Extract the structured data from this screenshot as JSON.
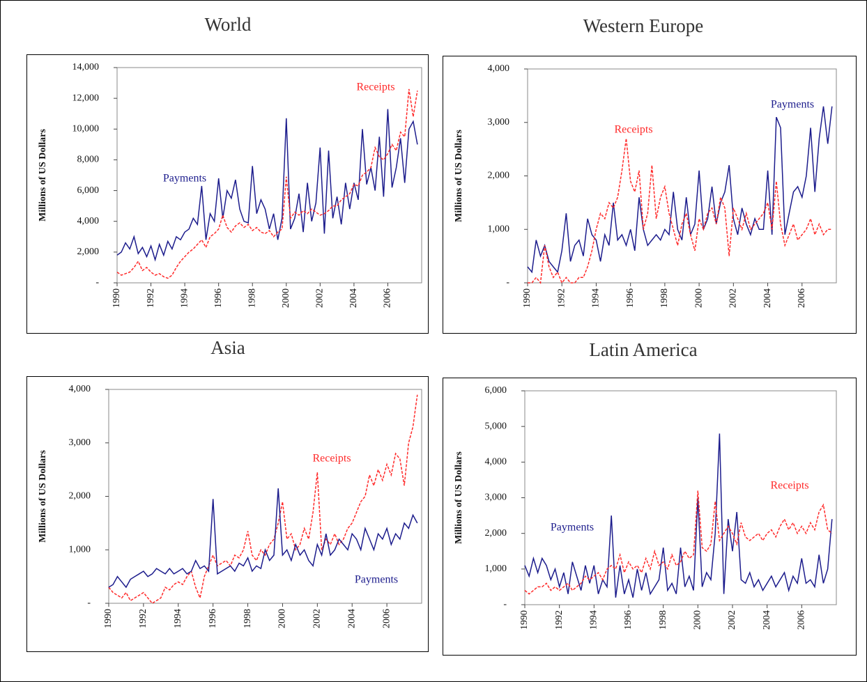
{
  "chart_data": [
    {
      "type": "line",
      "title": "World",
      "y_label": "Millions of US Dollars",
      "xlim": [
        1990,
        2008
      ],
      "xticks": [
        1990,
        1992,
        1994,
        1996,
        1998,
        2000,
        2002,
        2004,
        2006
      ],
      "ylim": [
        0,
        14000
      ],
      "yticks": [
        {
          "value": 0,
          "label": "-"
        },
        {
          "value": 2000,
          "label": "2,000"
        },
        {
          "value": 4000,
          "label": "4,000"
        },
        {
          "value": 6000,
          "label": "6,000"
        },
        {
          "value": 8000,
          "label": "8,000"
        },
        {
          "value": 10000,
          "label": "10,000"
        },
        {
          "value": 12000,
          "label": "12,000"
        },
        {
          "value": 14000,
          "label": "14,000"
        }
      ],
      "x": [
        1990,
        1990.25,
        1990.5,
        1990.75,
        1991,
        1991.25,
        1991.5,
        1991.75,
        1992,
        1992.25,
        1992.5,
        1992.75,
        1993,
        1993.25,
        1993.5,
        1993.75,
        1994,
        1994.25,
        1994.5,
        1994.75,
        1995,
        1995.25,
        1995.5,
        1995.75,
        1996,
        1996.25,
        1996.5,
        1996.75,
        1997,
        1997.25,
        1997.5,
        1997.75,
        1998,
        1998.25,
        1998.5,
        1998.75,
        1999,
        1999.25,
        1999.5,
        1999.75,
        2000,
        2000.25,
        2000.5,
        2000.75,
        2001,
        2001.25,
        2001.5,
        2001.75,
        2002,
        2002.25,
        2002.5,
        2002.75,
        2003,
        2003.25,
        2003.5,
        2003.75,
        2004,
        2004.25,
        2004.5,
        2004.75,
        2005,
        2005.25,
        2005.5,
        2005.75,
        2006,
        2006.25,
        2006.5,
        2006.75,
        2007,
        2007.25,
        2007.5,
        2007.75
      ],
      "series": [
        {
          "name": "Payments",
          "color": "#1c1c8c",
          "dashed": false,
          "values": [
            1800,
            2000,
            2600,
            2200,
            3000,
            1900,
            2300,
            1700,
            2400,
            1500,
            2500,
            1800,
            2700,
            2200,
            3000,
            2800,
            3300,
            3500,
            4200,
            3800,
            6300,
            2800,
            4500,
            4000,
            6800,
            4200,
            6000,
            5500,
            6700,
            4800,
            4000,
            3900,
            7600,
            4500,
            5400,
            4800,
            3500,
            4500,
            2800,
            4200,
            10700,
            3500,
            4200,
            5800,
            3300,
            6500,
            4000,
            5200,
            8800,
            3200,
            8600,
            4200,
            5600,
            3800,
            6500,
            4800,
            6500,
            5400,
            10000,
            6400,
            7500,
            6000,
            9500,
            5600,
            11300,
            6200,
            7500,
            9400,
            6500,
            10000,
            10500,
            9000
          ]
        },
        {
          "name": "Receipts",
          "color": "#ff2a2a",
          "dashed": true,
          "values": [
            700,
            500,
            600,
            700,
            1000,
            1400,
            800,
            1000,
            700,
            500,
            600,
            400,
            300,
            500,
            1000,
            1400,
            1700,
            2000,
            2200,
            2500,
            2800,
            2300,
            3000,
            3200,
            3500,
            4400,
            3600,
            3300,
            3700,
            3900,
            3600,
            3800,
            3400,
            3600,
            3300,
            3200,
            3400,
            3000,
            3300,
            3500,
            6900,
            4200,
            4600,
            4400,
            4700,
            4500,
            4800,
            4600,
            4400,
            4500,
            4700,
            5000,
            5000,
            5400,
            5600,
            5800,
            6400,
            6300,
            7000,
            7200,
            7500,
            8800,
            8200,
            8000,
            8400,
            9000,
            8600,
            9800,
            9500,
            12600,
            10800,
            12500
          ]
        }
      ]
    },
    {
      "type": "line",
      "title": "Western Europe",
      "y_label": "Millions of US Dollars",
      "xlim": [
        1990,
        2008
      ],
      "xticks": [
        1990,
        1992,
        1994,
        1996,
        1998,
        2000,
        2002,
        2004,
        2006
      ],
      "ylim": [
        0,
        4000
      ],
      "yticks": [
        {
          "value": 0,
          "label": "-"
        },
        {
          "value": 1000,
          "label": "1,000"
        },
        {
          "value": 2000,
          "label": "2,000"
        },
        {
          "value": 3000,
          "label": "3,000"
        },
        {
          "value": 4000,
          "label": "4,000"
        }
      ],
      "x": [
        1990,
        1990.25,
        1990.5,
        1990.75,
        1991,
        1991.25,
        1991.5,
        1991.75,
        1992,
        1992.25,
        1992.5,
        1992.75,
        1993,
        1993.25,
        1993.5,
        1993.75,
        1994,
        1994.25,
        1994.5,
        1994.75,
        1995,
        1995.25,
        1995.5,
        1995.75,
        1996,
        1996.25,
        1996.5,
        1996.75,
        1997,
        1997.25,
        1997.5,
        1997.75,
        1998,
        1998.25,
        1998.5,
        1998.75,
        1999,
        1999.25,
        1999.5,
        1999.75,
        2000,
        2000.25,
        2000.5,
        2000.75,
        2001,
        2001.25,
        2001.5,
        2001.75,
        2002,
        2002.25,
        2002.5,
        2002.75,
        2003,
        2003.25,
        2003.5,
        2003.75,
        2004,
        2004.25,
        2004.5,
        2004.75,
        2005,
        2005.25,
        2005.5,
        2005.75,
        2006,
        2006.25,
        2006.5,
        2006.75,
        2007,
        2007.25,
        2007.5,
        2007.75
      ],
      "series": [
        {
          "name": "Payments",
          "color": "#1c1c8c",
          "dashed": false,
          "values": [
            300,
            200,
            800,
            500,
            700,
            400,
            300,
            200,
            600,
            1300,
            400,
            700,
            800,
            500,
            1200,
            900,
            800,
            400,
            900,
            700,
            1500,
            800,
            900,
            700,
            1000,
            600,
            1600,
            1000,
            700,
            800,
            900,
            800,
            1000,
            900,
            1700,
            1000,
            800,
            1600,
            900,
            1100,
            2100,
            1000,
            1200,
            1800,
            1100,
            1500,
            1700,
            2200,
            1200,
            900,
            1400,
            1100,
            900,
            1200,
            1000,
            1000,
            2100,
            900,
            3100,
            2900,
            900,
            1300,
            1700,
            1800,
            1600,
            2000,
            2900,
            1700,
            2700,
            3300,
            2600,
            3300
          ]
        },
        {
          "name": "Receipts",
          "color": "#ff2a2a",
          "dashed": true,
          "values": [
            0,
            0,
            100,
            0,
            700,
            300,
            100,
            200,
            0,
            100,
            0,
            0,
            100,
            100,
            300,
            600,
            1000,
            1300,
            1200,
            1500,
            1400,
            1600,
            2100,
            2700,
            1900,
            1700,
            2100,
            1000,
            1300,
            2200,
            1200,
            1600,
            1800,
            1300,
            1000,
            700,
            1100,
            1300,
            900,
            600,
            1200,
            1000,
            1300,
            1400,
            1100,
            1600,
            1400,
            500,
            1400,
            1200,
            1000,
            1300,
            1000,
            1100,
            1200,
            1300,
            1500,
            1000,
            1900,
            1100,
            700,
            900,
            1100,
            800,
            900,
            1000,
            1200,
            900,
            1100,
            900,
            1000,
            1000
          ]
        }
      ]
    },
    {
      "type": "line",
      "title": "Asia",
      "y_label": "Millions of US Dollars",
      "xlim": [
        1990,
        2008
      ],
      "xticks": [
        1990,
        1992,
        1994,
        1996,
        1998,
        2000,
        2002,
        2004,
        2006
      ],
      "ylim": [
        0,
        4000
      ],
      "yticks": [
        {
          "value": 0,
          "label": "-"
        },
        {
          "value": 1000,
          "label": "1,000"
        },
        {
          "value": 2000,
          "label": "2,000"
        },
        {
          "value": 3000,
          "label": "3,000"
        },
        {
          "value": 4000,
          "label": "4,000"
        }
      ],
      "x": [
        1990,
        1990.25,
        1990.5,
        1990.75,
        1991,
        1991.25,
        1991.5,
        1991.75,
        1992,
        1992.25,
        1992.5,
        1992.75,
        1993,
        1993.25,
        1993.5,
        1993.75,
        1994,
        1994.25,
        1994.5,
        1994.75,
        1995,
        1995.25,
        1995.5,
        1995.75,
        1996,
        1996.25,
        1996.5,
        1996.75,
        1997,
        1997.25,
        1997.5,
        1997.75,
        1998,
        1998.25,
        1998.5,
        1998.75,
        1999,
        1999.25,
        1999.5,
        1999.75,
        2000,
        2000.25,
        2000.5,
        2000.75,
        2001,
        2001.25,
        2001.5,
        2001.75,
        2002,
        2002.25,
        2002.5,
        2002.75,
        2003,
        2003.25,
        2003.5,
        2003.75,
        2004,
        2004.25,
        2004.5,
        2004.75,
        2005,
        2005.25,
        2005.5,
        2005.75,
        2006,
        2006.25,
        2006.5,
        2006.75,
        2007,
        2007.25,
        2007.5,
        2007.75
      ],
      "series": [
        {
          "name": "Receipts",
          "color": "#ff2a2a",
          "dashed": true,
          "values": [
            300,
            200,
            150,
            100,
            200,
            50,
            100,
            150,
            200,
            100,
            0,
            50,
            100,
            300,
            250,
            350,
            400,
            350,
            500,
            600,
            300,
            100,
            500,
            700,
            900,
            700,
            750,
            800,
            700,
            900,
            850,
            1000,
            1350,
            900,
            800,
            1000,
            900,
            1100,
            1200,
            1500,
            1900,
            1200,
            1300,
            1000,
            1100,
            1400,
            1200,
            1700,
            2450,
            1000,
            1200,
            1100,
            1300,
            1100,
            1200,
            1400,
            1500,
            1700,
            1900,
            2000,
            2400,
            2200,
            2500,
            2300,
            2600,
            2400,
            2800,
            2700,
            2200,
            3000,
            3300,
            3900
          ]
        },
        {
          "name": "Payments",
          "color": "#1c1c8c",
          "dashed": false,
          "values": [
            300,
            350,
            500,
            400,
            300,
            450,
            500,
            550,
            600,
            500,
            550,
            650,
            600,
            550,
            650,
            550,
            600,
            650,
            550,
            600,
            800,
            650,
            700,
            600,
            1950,
            550,
            600,
            650,
            700,
            600,
            750,
            700,
            850,
            600,
            700,
            650,
            1000,
            800,
            900,
            2150,
            900,
            1000,
            800,
            1100,
            900,
            1000,
            800,
            700,
            1100,
            900,
            1300,
            900,
            1000,
            1200,
            1100,
            1000,
            1300,
            1200,
            1000,
            1400,
            1200,
            1000,
            1300,
            1200,
            1400,
            1100,
            1300,
            1200,
            1500,
            1400,
            1650,
            1500
          ]
        }
      ]
    },
    {
      "type": "line",
      "title": "Latin America",
      "y_label": "Millions of US Dollars",
      "xlim": [
        1990,
        2008
      ],
      "xticks": [
        1990,
        1992,
        1994,
        1996,
        1998,
        2000,
        2002,
        2004,
        2006
      ],
      "ylim": [
        0,
        6000
      ],
      "yticks": [
        {
          "value": 0,
          "label": "-"
        },
        {
          "value": 1000,
          "label": "1,000"
        },
        {
          "value": 2000,
          "label": "2,000"
        },
        {
          "value": 3000,
          "label": "3,000"
        },
        {
          "value": 4000,
          "label": "4,000"
        },
        {
          "value": 5000,
          "label": "5,000"
        },
        {
          "value": 6000,
          "label": "6,000"
        }
      ],
      "x": [
        1990,
        1990.25,
        1990.5,
        1990.75,
        1991,
        1991.25,
        1991.5,
        1991.75,
        1992,
        1992.25,
        1992.5,
        1992.75,
        1993,
        1993.25,
        1993.5,
        1993.75,
        1994,
        1994.25,
        1994.5,
        1994.75,
        1995,
        1995.25,
        1995.5,
        1995.75,
        1996,
        1996.25,
        1996.5,
        1996.75,
        1997,
        1997.25,
        1997.5,
        1997.75,
        1998,
        1998.25,
        1998.5,
        1998.75,
        1999,
        1999.25,
        1999.5,
        1999.75,
        2000,
        2000.25,
        2000.5,
        2000.75,
        2001,
        2001.25,
        2001.5,
        2001.75,
        2002,
        2002.25,
        2002.5,
        2002.75,
        2003,
        2003.25,
        2003.5,
        2003.75,
        2004,
        2004.25,
        2004.5,
        2004.75,
        2005,
        2005.25,
        2005.5,
        2005.75,
        2006,
        2006.25,
        2006.5,
        2006.75,
        2007,
        2007.25,
        2007.5,
        2007.75
      ],
      "series": [
        {
          "name": "Payments",
          "color": "#1c1c8c",
          "dashed": false,
          "values": [
            1100,
            800,
            1300,
            900,
            1300,
            1100,
            700,
            1000,
            500,
            900,
            300,
            1200,
            800,
            400,
            1100,
            600,
            1100,
            300,
            700,
            500,
            2500,
            200,
            1100,
            300,
            700,
            200,
            1000,
            400,
            900,
            300,
            500,
            700,
            1600,
            400,
            600,
            300,
            1600,
            500,
            800,
            400,
            3000,
            500,
            900,
            700,
            2000,
            4800,
            300,
            2400,
            1500,
            2600,
            700,
            600,
            900,
            500,
            700,
            400,
            600,
            800,
            500,
            700,
            900,
            400,
            800,
            600,
            1300,
            600,
            700,
            500,
            1400,
            600,
            1000,
            2400
          ]
        },
        {
          "name": "Receipts",
          "color": "#ff2a2a",
          "dashed": true,
          "values": [
            400,
            300,
            400,
            500,
            500,
            600,
            400,
            500,
            400,
            500,
            600,
            400,
            500,
            600,
            800,
            700,
            800,
            900,
            700,
            1000,
            1100,
            1000,
            1400,
            900,
            1200,
            1000,
            1100,
            900,
            1300,
            1000,
            1500,
            1100,
            1200,
            1000,
            1400,
            1100,
            1200,
            1500,
            1300,
            1400,
            3200,
            1600,
            1500,
            1700,
            2900,
            1800,
            2000,
            2200,
            2000,
            1700,
            2300,
            1900,
            1800,
            1900,
            2000,
            1800,
            2000,
            2100,
            1900,
            2200,
            2400,
            2100,
            2300,
            2000,
            2200,
            2000,
            2300,
            2100,
            2600,
            2800,
            2100,
            2000
          ]
        }
      ]
    }
  ]
}
